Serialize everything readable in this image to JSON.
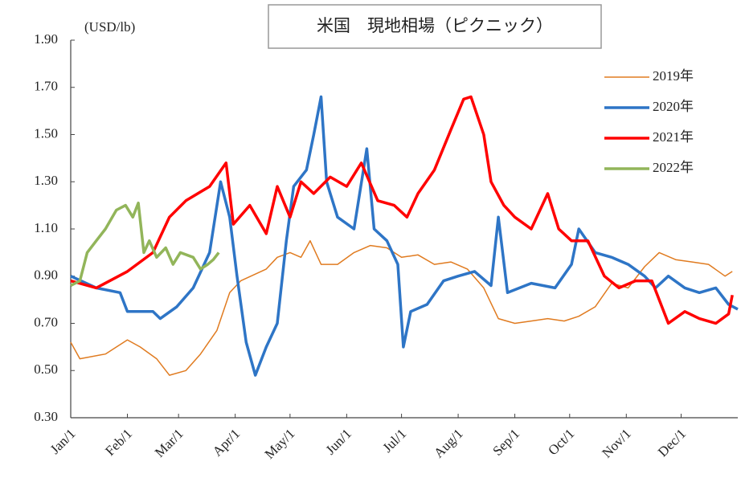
{
  "chart_data": {
    "type": "line",
    "title": "米国　現地相場（ピクニック）",
    "ylabel": "(USD/lb)",
    "xlim": [
      0,
      365
    ],
    "xticks": [
      {
        "value": 0,
        "label": "Jan/1"
      },
      {
        "value": 31,
        "label": "Feb/1"
      },
      {
        "value": 59,
        "label": "Mar/1"
      },
      {
        "value": 90,
        "label": "Apr/1"
      },
      {
        "value": 120,
        "label": "May/1"
      },
      {
        "value": 151,
        "label": "Jun/1"
      },
      {
        "value": 181,
        "label": "Jul/1"
      },
      {
        "value": 212,
        "label": "Aug/1"
      },
      {
        "value": 243,
        "label": "Sep/1"
      },
      {
        "value": 273,
        "label": "Oct/1"
      },
      {
        "value": 304,
        "label": "Nov/1"
      },
      {
        "value": 334,
        "label": "Dec/1"
      }
    ],
    "ylim": [
      0.3,
      1.9
    ],
    "yticks": [
      {
        "value": 0.3,
        "label": "0.30"
      },
      {
        "value": 0.5,
        "label": "0.50"
      },
      {
        "value": 0.7,
        "label": "0.70"
      },
      {
        "value": 0.9,
        "label": "0.90"
      },
      {
        "value": 1.1,
        "label": "1.10"
      },
      {
        "value": 1.3,
        "label": "1.30"
      },
      {
        "value": 1.5,
        "label": "1.50"
      },
      {
        "value": 1.7,
        "label": "1.70"
      },
      {
        "value": 1.9,
        "label": "1.90"
      }
    ],
    "legend": "right",
    "series": [
      {
        "name": "2019年",
        "color": "#e07b20",
        "width": 1.5,
        "x": [
          0,
          5,
          19,
          31,
          38,
          47,
          54,
          63,
          71,
          80,
          87,
          93,
          107,
          113,
          120,
          126,
          131,
          137,
          146,
          155,
          164,
          173,
          181,
          190,
          199,
          208,
          217,
          226,
          234,
          243,
          252,
          261,
          270,
          278,
          287,
          296,
          305,
          314,
          322,
          331,
          340,
          349,
          358,
          362
        ],
        "values": [
          0.62,
          0.55,
          0.57,
          0.63,
          0.6,
          0.55,
          0.48,
          0.5,
          0.57,
          0.67,
          0.83,
          0.88,
          0.93,
          0.98,
          1.0,
          0.98,
          1.05,
          0.95,
          0.95,
          1.0,
          1.03,
          1.02,
          0.98,
          0.99,
          0.95,
          0.96,
          0.93,
          0.85,
          0.72,
          0.7,
          0.71,
          0.72,
          0.71,
          0.73,
          0.77,
          0.87,
          0.85,
          0.94,
          1.0,
          0.97,
          0.96,
          0.95,
          0.9,
          0.92
        ]
      },
      {
        "name": "2020年",
        "color": "#2e75c6",
        "width": 3.5,
        "x": [
          0,
          14,
          27,
          31,
          45,
          49,
          58,
          67,
          76,
          82,
          87,
          91,
          96,
          101,
          107,
          113,
          118,
          122,
          129,
          133,
          137,
          140,
          146,
          155,
          162,
          166,
          173,
          179,
          182,
          186,
          195,
          204,
          212,
          221,
          230,
          234,
          239,
          252,
          265,
          274,
          278,
          287,
          296,
          305,
          314,
          320,
          327,
          336,
          344,
          353,
          360,
          365
        ],
        "values": [
          0.9,
          0.85,
          0.83,
          0.75,
          0.75,
          0.72,
          0.77,
          0.85,
          1.0,
          1.3,
          1.15,
          0.9,
          0.62,
          0.48,
          0.6,
          0.7,
          1.05,
          1.28,
          1.35,
          1.5,
          1.66,
          1.3,
          1.15,
          1.1,
          1.44,
          1.1,
          1.05,
          0.95,
          0.6,
          0.75,
          0.78,
          0.88,
          0.9,
          0.92,
          0.86,
          1.15,
          0.83,
          0.87,
          0.85,
          0.95,
          1.1,
          1.0,
          0.98,
          0.95,
          0.9,
          0.85,
          0.9,
          0.85,
          0.83,
          0.85,
          0.78,
          0.76
        ]
      },
      {
        "name": "2021年",
        "color": "#ff0000",
        "width": 3.5,
        "x": [
          0,
          14,
          31,
          45,
          54,
          63,
          76,
          85,
          89,
          98,
          107,
          113,
          120,
          126,
          133,
          142,
          151,
          159,
          168,
          177,
          184,
          190,
          199,
          208,
          215,
          219,
          226,
          230,
          237,
          243,
          252,
          261,
          267,
          274,
          283,
          292,
          300,
          309,
          318,
          327,
          336,
          344,
          353,
          360,
          362
        ],
        "values": [
          0.88,
          0.85,
          0.92,
          1.0,
          1.15,
          1.22,
          1.28,
          1.38,
          1.12,
          1.2,
          1.08,
          1.28,
          1.15,
          1.3,
          1.25,
          1.32,
          1.28,
          1.38,
          1.22,
          1.2,
          1.15,
          1.25,
          1.35,
          1.52,
          1.65,
          1.66,
          1.5,
          1.3,
          1.2,
          1.15,
          1.1,
          1.25,
          1.1,
          1.05,
          1.05,
          0.9,
          0.85,
          0.88,
          0.88,
          0.7,
          0.75,
          0.72,
          0.7,
          0.74,
          0.82
        ]
      },
      {
        "name": "2022年",
        "color": "#92b55a",
        "width": 3.5,
        "x": [
          0,
          5,
          9,
          14,
          19,
          25,
          30,
          34,
          37,
          40,
          43,
          47,
          52,
          56,
          60,
          67,
          71,
          75,
          78,
          81
        ],
        "values": [
          0.86,
          0.88,
          1.0,
          1.05,
          1.1,
          1.18,
          1.2,
          1.15,
          1.21,
          1.0,
          1.05,
          0.98,
          1.02,
          0.95,
          1.0,
          0.98,
          0.93,
          0.95,
          0.97,
          1.0
        ]
      }
    ]
  }
}
